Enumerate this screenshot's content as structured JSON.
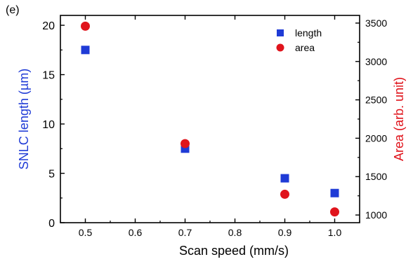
{
  "panel_label": "(e)",
  "chart_data": {
    "type": "scatter",
    "x": [
      0.5,
      0.7,
      0.9,
      1.0
    ],
    "xlabel": "Scan speed (mm/s)",
    "xlim": [
      0.45,
      1.05
    ],
    "xticks": [
      "0.5",
      "0.6",
      "0.7",
      "0.8",
      "0.9",
      "1.0"
    ],
    "y_left": {
      "label": "SNLC length (µm)",
      "lim": [
        0,
        21
      ],
      "ticks": [
        "0",
        "5",
        "10",
        "15",
        "20"
      ],
      "color": "#1f3bd6"
    },
    "y_right": {
      "label": "Area (arb. unit)",
      "lim": [
        900,
        3600
      ],
      "ticks": [
        "1000",
        "1500",
        "2000",
        "2500",
        "3000",
        "3500"
      ],
      "color": "#e0141c"
    },
    "series": [
      {
        "name": "length",
        "axis": "left",
        "marker": "square",
        "color": "#1f3bd6",
        "values": [
          17.5,
          7.5,
          4.5,
          3.0
        ]
      },
      {
        "name": "area",
        "axis": "right",
        "marker": "circle",
        "color": "#e0141c",
        "values": [
          3460,
          1930,
          1270,
          1040
        ]
      }
    ],
    "legend_position": "top-right",
    "grid": false
  }
}
